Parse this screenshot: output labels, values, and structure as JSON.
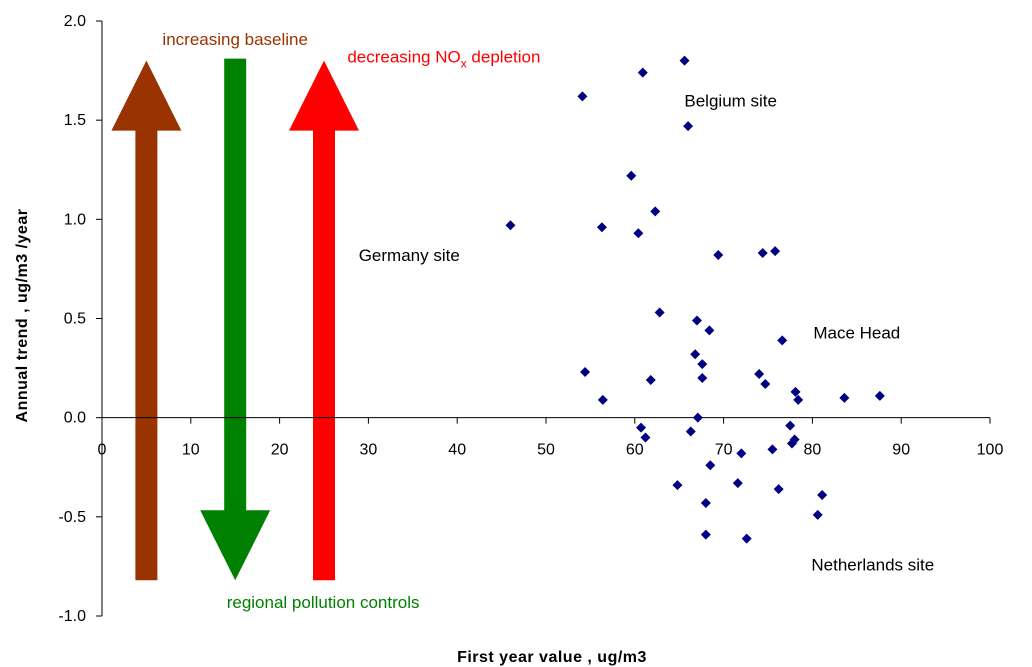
{
  "chart_data": {
    "type": "scatter",
    "xlabel": "First year value , ug/m3",
    "ylabel": "Annual trend , ug/m3 /year",
    "xlim": [
      0,
      100
    ],
    "ylim": [
      -1.0,
      2.0
    ],
    "x_ticks": [
      0,
      10,
      20,
      30,
      40,
      50,
      60,
      70,
      80,
      90,
      100
    ],
    "y_ticks": [
      -1.0,
      -0.5,
      0.0,
      0.5,
      1.0,
      1.5,
      2.0
    ],
    "y_tick_labels": [
      "-1.0",
      "-0.5",
      "0.0",
      "0.5",
      "1.0",
      "1.5",
      "2.0"
    ],
    "grid": false,
    "marker": "diamond",
    "marker_color": "#000080",
    "points": [
      {
        "x": 46.0,
        "y": 0.97
      },
      {
        "x": 54.1,
        "y": 1.62
      },
      {
        "x": 54.4,
        "y": 0.23
      },
      {
        "x": 56.3,
        "y": 0.96
      },
      {
        "x": 56.4,
        "y": 0.09
      },
      {
        "x": 59.6,
        "y": 1.22
      },
      {
        "x": 60.4,
        "y": 0.93
      },
      {
        "x": 60.7,
        "y": -0.05
      },
      {
        "x": 60.9,
        "y": 1.74
      },
      {
        "x": 61.2,
        "y": -0.1
      },
      {
        "x": 61.8,
        "y": 0.19
      },
      {
        "x": 62.3,
        "y": 1.04
      },
      {
        "x": 62.8,
        "y": 0.53
      },
      {
        "x": 64.8,
        "y": -0.34
      },
      {
        "x": 65.6,
        "y": 1.8
      },
      {
        "x": 66.0,
        "y": 1.47
      },
      {
        "x": 66.3,
        "y": -0.07
      },
      {
        "x": 66.8,
        "y": 0.32
      },
      {
        "x": 67.0,
        "y": 0.49
      },
      {
        "x": 67.1,
        "y": 0.0
      },
      {
        "x": 67.6,
        "y": 0.27
      },
      {
        "x": 67.6,
        "y": 0.2
      },
      {
        "x": 68.0,
        "y": -0.43
      },
      {
        "x": 68.0,
        "y": -0.59
      },
      {
        "x": 68.4,
        "y": 0.44
      },
      {
        "x": 68.5,
        "y": -0.24
      },
      {
        "x": 69.4,
        "y": 0.82
      },
      {
        "x": 71.6,
        "y": -0.33
      },
      {
        "x": 72.0,
        "y": -0.18
      },
      {
        "x": 72.6,
        "y": -0.61
      },
      {
        "x": 74.0,
        "y": 0.22
      },
      {
        "x": 74.4,
        "y": 0.83
      },
      {
        "x": 74.7,
        "y": 0.17
      },
      {
        "x": 75.5,
        "y": -0.16
      },
      {
        "x": 75.8,
        "y": 0.84
      },
      {
        "x": 76.2,
        "y": -0.36
      },
      {
        "x": 76.6,
        "y": 0.39
      },
      {
        "x": 77.5,
        "y": -0.04
      },
      {
        "x": 77.7,
        "y": -0.13
      },
      {
        "x": 78.0,
        "y": -0.11
      },
      {
        "x": 78.1,
        "y": 0.13
      },
      {
        "x": 78.4,
        "y": 0.09
      },
      {
        "x": 80.6,
        "y": -0.49
      },
      {
        "x": 81.1,
        "y": -0.39
      },
      {
        "x": 83.6,
        "y": 0.1
      },
      {
        "x": 87.6,
        "y": 0.11
      }
    ],
    "annotations": [
      {
        "text": "Belgium site",
        "x": 70.8,
        "y": 1.6
      },
      {
        "text": "Germany site",
        "x": 34.6,
        "y": 0.82
      },
      {
        "text": "Mace Head",
        "x": 85.0,
        "y": 0.43
      },
      {
        "text": "Netherlands site",
        "x": 86.8,
        "y": -0.74
      }
    ],
    "arrows": [
      {
        "label": "increasing baseline",
        "direction": "up",
        "x": 5,
        "y_from": -0.82,
        "y_to": 1.8,
        "color": "#993300",
        "label_x": 15.0,
        "label_y": 1.91
      },
      {
        "label": "regional pollution controls",
        "direction": "down",
        "x": 15,
        "y_from": 1.81,
        "y_to": -0.82,
        "color": "#008000",
        "label_x": 24.9,
        "label_y": -0.93
      },
      {
        "label_main": "decreasing NO",
        "label_sub": "x",
        "label_tail": " depletion",
        "direction": "up",
        "x": 25,
        "y_from": -0.82,
        "y_to": 1.8,
        "color": "#ff0000",
        "label_x": 38.5,
        "label_y": 1.82
      }
    ]
  }
}
